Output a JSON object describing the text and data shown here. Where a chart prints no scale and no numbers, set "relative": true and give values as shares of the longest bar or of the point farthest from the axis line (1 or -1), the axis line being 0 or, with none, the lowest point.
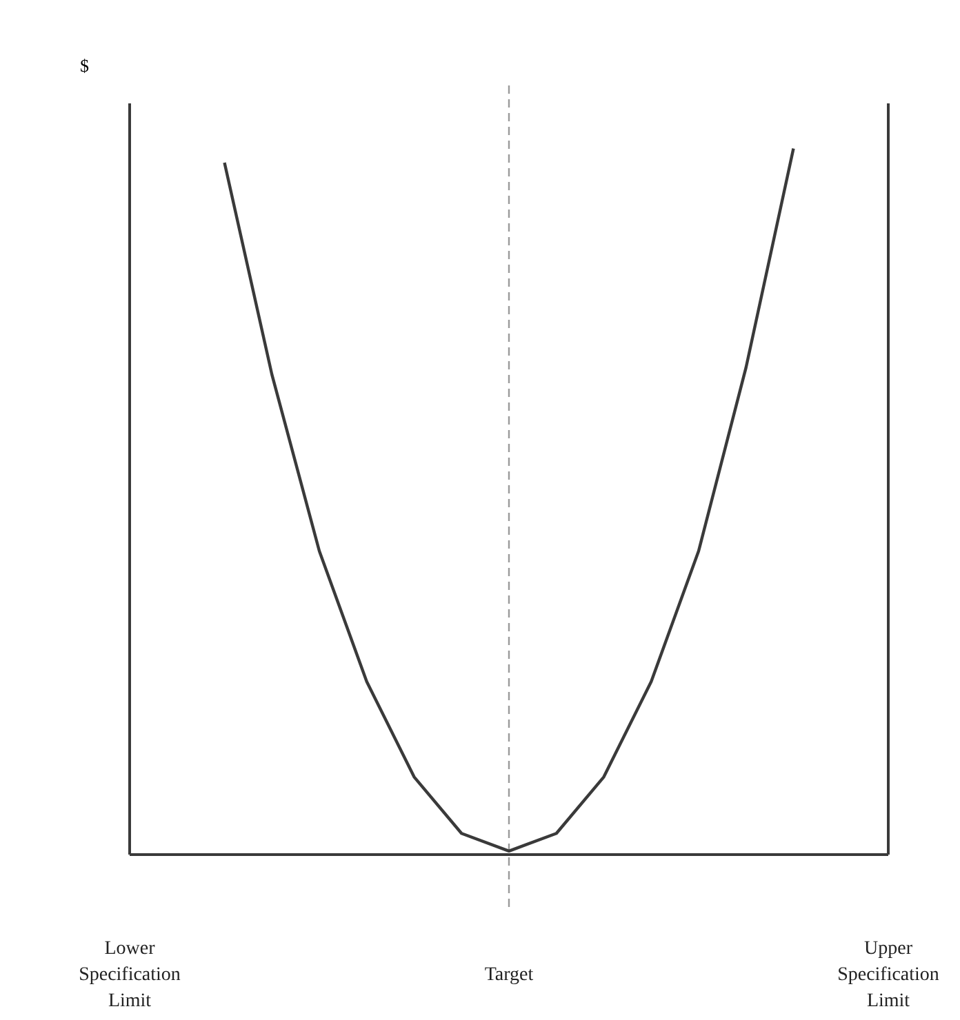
{
  "chart_data": {
    "type": "line",
    "relative": true,
    "ylabel": "$",
    "categories": [
      "Lower Specification Limit",
      null,
      null,
      null,
      null,
      null,
      null,
      null,
      "Target",
      null,
      null,
      null,
      null,
      null,
      null,
      null,
      "Upper Specification Limit"
    ],
    "series": [
      {
        "color": "#3a3a3a",
        "values": [
          null,
          null,
          0.98,
          0.68,
          0.43,
          0.245,
          0.11,
          0.03,
          0.005,
          0.03,
          0.11,
          0.245,
          0.43,
          0.69,
          1,
          null,
          null
        ]
      }
    ],
    "ref_lines": [
      {
        "axis": "x",
        "value": "Target",
        "line_style": "dashed",
        "color": "#9a9a9a"
      },
      {
        "axis": "x",
        "value": "Upper Specification Limit",
        "line_style": "solid",
        "color": "#3a3a3a"
      }
    ],
    "grid": false,
    "marker": "none",
    "line_style": "solid"
  }
}
